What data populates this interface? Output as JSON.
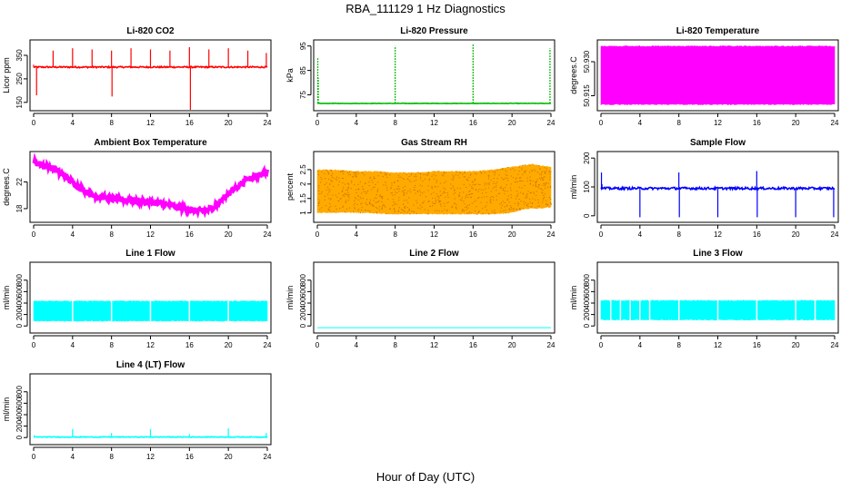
{
  "figure": {
    "title": "RBA_111129  1 Hz Diagnostics",
    "xlabel": "Hour of Day (UTC)"
  },
  "chart_data": [
    {
      "type": "line",
      "title": "Li-820 CO2",
      "ylabel": "Licor ppm",
      "color": "#ff0000",
      "xlim": [
        0,
        24
      ],
      "ylim": [
        130,
        400
      ],
      "xticks": [
        0,
        4,
        8,
        12,
        16,
        20,
        24
      ],
      "yticks": [
        150,
        250,
        350
      ],
      "series": [
        {
          "base": 300,
          "noise": 6,
          "x": [
            0,
            0.1,
            0.3,
            0.35,
            1,
            1.15,
            1.9,
            2.0,
            2.1,
            3.0,
            3.9,
            4.0,
            4.1,
            5,
            5.9,
            6.0,
            6.1,
            7,
            7.9,
            8.0,
            8.05,
            8.1,
            9,
            9.9,
            10.0,
            10.1,
            11,
            11.9,
            12.0,
            12.1,
            13,
            13.9,
            14.0,
            14.1,
            15,
            15.9,
            16.0,
            16.1,
            16.2,
            17,
            17.9,
            18.0,
            18.1,
            19,
            19.9,
            20.0,
            20.1,
            21,
            21.9,
            22.0,
            22.1,
            23,
            23.9,
            24.0
          ],
          "y": [
            310,
            300,
            180,
            300,
            300,
            300,
            300,
            370,
            300,
            300,
            300,
            380,
            300,
            300,
            300,
            375,
            300,
            300,
            300,
            370,
            175,
            300,
            300,
            300,
            380,
            300,
            300,
            300,
            375,
            300,
            300,
            300,
            370,
            300,
            300,
            300,
            385,
            100,
            300,
            300,
            300,
            375,
            300,
            300,
            300,
            380,
            300,
            300,
            300,
            370,
            300,
            300,
            360,
            300
          ]
        }
      ]
    },
    {
      "type": "line",
      "title": "Li-820 Pressure",
      "ylabel": "kPa",
      "color": "#00bb00",
      "xlim": [
        0,
        24
      ],
      "ylim": [
        70,
        96
      ],
      "xticks": [
        0,
        4,
        8,
        12,
        16,
        20,
        24
      ],
      "yticks": [
        75,
        85,
        95
      ],
      "series": [
        {
          "base": 71.5,
          "noise": 0.2,
          "x": [
            0,
            0.05,
            0.1,
            0.2,
            0.3,
            1,
            7.9,
            8.0,
            8.1,
            9,
            15.9,
            16.0,
            16.1,
            17,
            23.8,
            23.9,
            24.0
          ],
          "y": [
            71.5,
            90,
            82,
            71.5,
            71.5,
            71.5,
            71.5,
            95,
            71.5,
            71.5,
            71.5,
            96,
            71.5,
            71.5,
            71.5,
            94,
            71.5
          ]
        }
      ]
    },
    {
      "type": "area",
      "title": "Li-820 Temperature",
      "ylabel": "degrees.C",
      "color": "#ff00ff",
      "xlim": [
        0,
        24
      ],
      "ylim": [
        50.91,
        50.938
      ],
      "xticks": [
        0,
        4,
        8,
        12,
        16,
        20,
        24
      ],
      "yticks": [
        50.915,
        50.93
      ],
      "series": [
        {
          "x": [
            0,
            24
          ],
          "low": [
            50.911,
            50.911
          ],
          "high": [
            50.937,
            50.937
          ]
        }
      ]
    },
    {
      "type": "line",
      "title": "Ambient Box Temperature",
      "ylabel": "degrees.C",
      "color": "#ff00ff",
      "xlim": [
        0,
        24
      ],
      "ylim": [
        16.5,
        26
      ],
      "xticks": [
        0,
        4,
        8,
        12,
        16,
        20,
        24
      ],
      "yticks": [
        18,
        22
      ],
      "series": [
        {
          "band": 0.9,
          "x": [
            0,
            2,
            4,
            6,
            8,
            10,
            12,
            14,
            16,
            17,
            18,
            19,
            20,
            22,
            24
          ],
          "y": [
            25,
            24,
            22,
            20,
            19.5,
            19.3,
            19,
            18.5,
            17.8,
            17.6,
            17.8,
            18.8,
            20.3,
            22.5,
            23.5
          ]
        }
      ]
    },
    {
      "type": "area",
      "title": "Gas Stream RH",
      "ylabel": "percent",
      "color": "#ffaa00",
      "xlim": [
        0,
        24
      ],
      "ylim": [
        0.8,
        3.0
      ],
      "xticks": [
        0,
        4,
        8,
        12,
        16,
        20,
        24
      ],
      "yticks": [
        1.0,
        1.5,
        2.0,
        2.5
      ],
      "series": [
        {
          "x": [
            0,
            2,
            4,
            6,
            8,
            10,
            12,
            14,
            16,
            18,
            19,
            20,
            21,
            22,
            23,
            24
          ],
          "low": [
            1.0,
            1.0,
            1.0,
            0.98,
            0.95,
            0.95,
            0.95,
            0.95,
            0.95,
            0.95,
            0.97,
            1.0,
            1.1,
            1.15,
            1.15,
            1.2
          ],
          "high": [
            2.5,
            2.5,
            2.45,
            2.45,
            2.4,
            2.4,
            2.45,
            2.45,
            2.45,
            2.5,
            2.55,
            2.6,
            2.65,
            2.7,
            2.65,
            2.6
          ]
        }
      ]
    },
    {
      "type": "line",
      "title": "Sample Flow",
      "ylabel": "ml/min",
      "color": "#0000ff",
      "xlim": [
        0,
        24
      ],
      "ylim": [
        -10,
        210
      ],
      "xticks": [
        0,
        4,
        8,
        12,
        16,
        20,
        24
      ],
      "yticks": [
        0,
        100,
        200
      ],
      "series": [
        {
          "base": 95,
          "noise": 8,
          "x": [
            0,
            0.05,
            0.1,
            0.2,
            3.9,
            4.0,
            4.1,
            7.9,
            8.0,
            8.05,
            8.1,
            11.9,
            12.0,
            12.1,
            15.9,
            16.0,
            16.05,
            16.1,
            19.9,
            20.0,
            20.1,
            23.8,
            23.9,
            24.0
          ],
          "y": [
            95,
            150,
            110,
            95,
            95,
            -5,
            95,
            95,
            150,
            -5,
            95,
            95,
            -5,
            95,
            95,
            155,
            -5,
            95,
            95,
            -5,
            95,
            95,
            -5,
            95
          ]
        }
      ]
    },
    {
      "type": "area",
      "title": "Line 1 Flow",
      "ylabel": "ml/min",
      "color": "#00ffff",
      "xlim": [
        0,
        24
      ],
      "ylim": [
        -60,
        1050
      ],
      "xticks": [
        0,
        4,
        8,
        12,
        16,
        20,
        24
      ],
      "yticks": [
        0,
        200,
        400,
        600,
        800
      ],
      "series": [
        {
          "x": [
            0,
            24
          ],
          "low": [
            80,
            80
          ],
          "high": [
            440,
            440
          ],
          "gaps": [
            4,
            8,
            12,
            16,
            20
          ]
        }
      ]
    },
    {
      "type": "line",
      "title": "Line 2 Flow",
      "ylabel": "ml/min",
      "color": "#00ffff",
      "xlim": [
        0,
        24
      ],
      "ylim": [
        -60,
        1050
      ],
      "xticks": [
        0,
        4,
        8,
        12,
        16,
        20,
        24
      ],
      "yticks": [
        0,
        200,
        400,
        600,
        800
      ],
      "series": [
        {
          "x": [
            0,
            24
          ],
          "y": [
            -30,
            -30
          ]
        }
      ]
    },
    {
      "type": "area",
      "title": "Line 3 Flow",
      "ylabel": "ml/min",
      "color": "#00ffff",
      "xlim": [
        0,
        24
      ],
      "ylim": [
        -60,
        1050
      ],
      "xticks": [
        0,
        4,
        8,
        12,
        16,
        20,
        24
      ],
      "yticks": [
        0,
        200,
        400,
        600,
        800
      ],
      "series": [
        {
          "x": [
            0,
            24
          ],
          "low": [
            100,
            100
          ],
          "high": [
            450,
            450
          ],
          "gaps": [
            1,
            2,
            3,
            4,
            5,
            8,
            12,
            16,
            20,
            22
          ]
        }
      ]
    },
    {
      "type": "line",
      "title": "Line 4 (LT) Flow",
      "ylabel": "ml/min",
      "color": "#00ffff",
      "xlim": [
        0,
        24
      ],
      "ylim": [
        -60,
        1050
      ],
      "xticks": [
        0,
        4,
        8,
        12,
        16,
        20,
        24
      ],
      "yticks": [
        0,
        200,
        400,
        600,
        800
      ],
      "series": [
        {
          "base": 10,
          "noise": 12,
          "x": [
            0,
            0.05,
            0.1,
            3.9,
            4.0,
            4.1,
            7.9,
            8.0,
            8.1,
            11.9,
            12.0,
            12.1,
            15.9,
            16.0,
            16.1,
            19.9,
            20.0,
            20.1,
            23.8,
            23.9,
            24.0
          ],
          "y": [
            10,
            40,
            10,
            10,
            150,
            10,
            10,
            80,
            10,
            10,
            150,
            10,
            10,
            60,
            10,
            10,
            160,
            10,
            10,
            80,
            10
          ]
        }
      ]
    }
  ]
}
